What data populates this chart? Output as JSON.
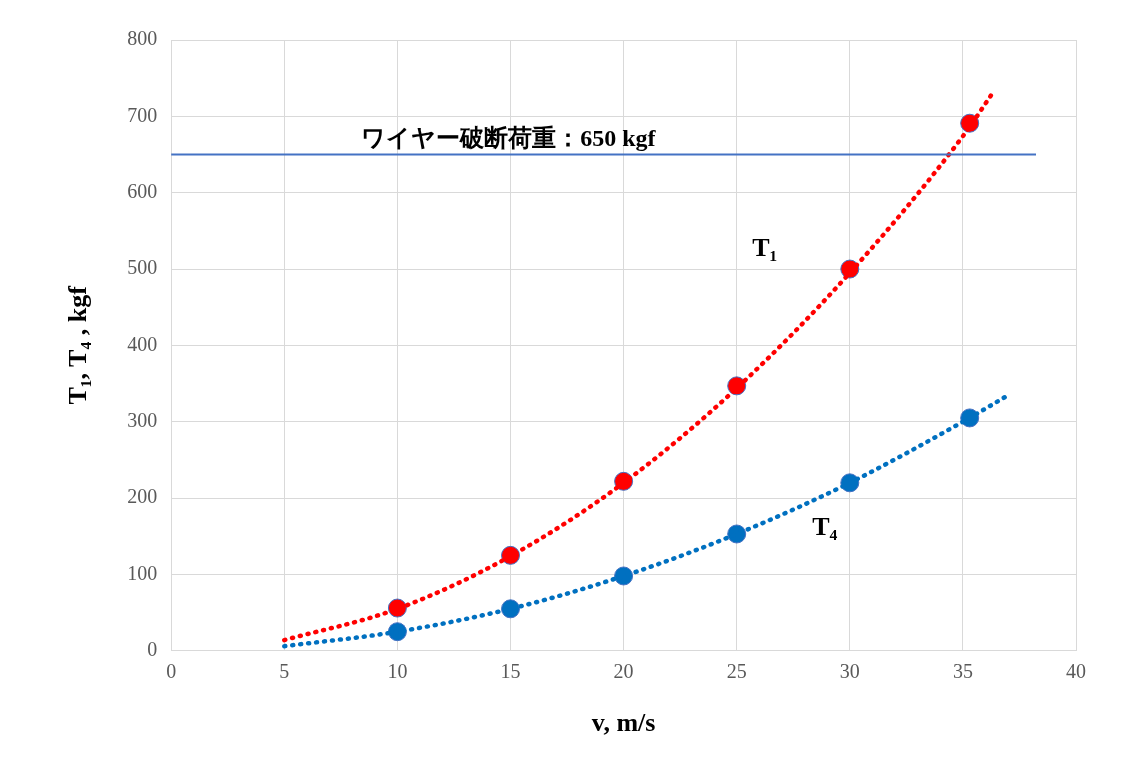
{
  "chart_data": {
    "type": "scatter",
    "xlabel": "v, m/s",
    "ylabel": "T₁, T₄ , kgf",
    "xlim": [
      0,
      40
    ],
    "xticks": [
      0,
      5,
      10,
      15,
      20,
      25,
      30,
      35,
      40
    ],
    "ylim": [
      0,
      800
    ],
    "yticks": [
      0,
      100,
      200,
      300,
      400,
      500,
      600,
      700,
      800
    ],
    "grid": true,
    "legend": false,
    "marker": "circle",
    "series": [
      {
        "type": "line",
        "line_style": "dotted",
        "marker": "none",
        "color": "#ff0000",
        "x": [
          5,
          10,
          15,
          20,
          25,
          30,
          35,
          36.3
        ],
        "values": [
          14,
          55,
          124,
          220,
          344,
          495,
          674,
          730
        ]
      },
      {
        "type": "line",
        "line_style": "dotted",
        "marker": "none",
        "color": "#0070c0",
        "x": [
          5,
          10,
          15,
          20,
          25,
          30,
          35,
          36.9
        ],
        "values": [
          6,
          25,
          55,
          98,
          153,
          220,
          300,
          333
        ]
      },
      {
        "type": "scatter",
        "name": "T₁",
        "color": "#ff0000",
        "x": [
          10,
          15,
          20,
          25,
          30,
          35.3
        ],
        "values": [
          56,
          125,
          222,
          347,
          500,
          691
        ]
      },
      {
        "type": "scatter",
        "name": "T₄",
        "color": "#0070c0",
        "x": [
          10,
          15,
          20,
          25,
          30,
          35.3
        ],
        "values": [
          25,
          55,
          98,
          153,
          220,
          305
        ]
      }
    ],
    "ref_lines": [
      {
        "axis": "y",
        "value": 650,
        "label": "ワイヤー破断荷重：650 kgf",
        "color": "#4472c4"
      }
    ]
  }
}
